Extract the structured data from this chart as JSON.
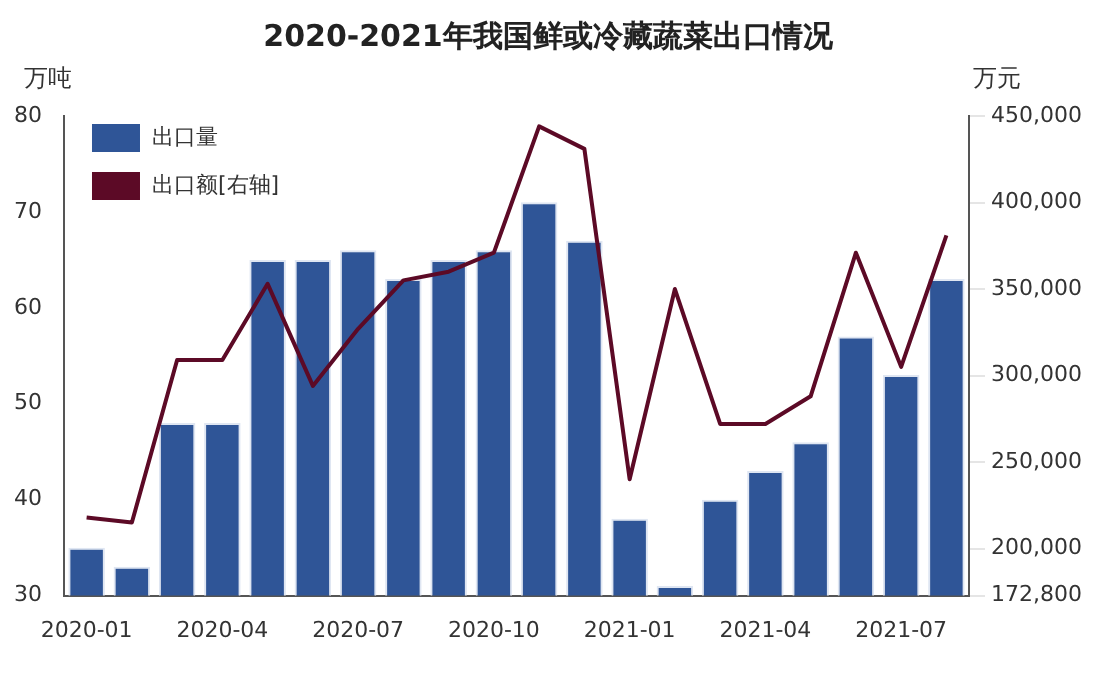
{
  "chart_data": {
    "type": "bar",
    "title": "2020-2021年我国鲜或冷藏蔬菜出口情况",
    "ylabel": "万吨",
    "y2label": "万元",
    "categories": [
      "2020-01",
      null,
      null,
      "2020-04",
      null,
      null,
      "2020-07",
      null,
      null,
      "2020-10",
      null,
      null,
      "2021-01",
      null,
      null,
      "2021-04",
      null,
      null,
      "2021-07",
      null
    ],
    "series": [
      {
        "name": "出口量",
        "color": "#2f5597",
        "values": [
          35,
          33,
          48,
          48,
          65,
          65,
          66,
          63,
          65,
          66,
          71,
          67,
          38,
          31,
          40,
          43,
          46,
          57,
          53,
          63
        ]
      },
      {
        "name": "出口额[右轴]",
        "type": "line",
        "axis": "y2",
        "color": "#5c0a26",
        "values": [
          218000,
          215000,
          309000,
          309000,
          353000,
          294000,
          327000,
          355000,
          360000,
          371000,
          444000,
          431000,
          240000,
          350000,
          272000,
          272000,
          288000,
          371000,
          305000,
          381000
        ]
      }
    ],
    "ylim": [
      30,
      80
    ],
    "yticks": [
      30,
      40,
      50,
      60,
      70,
      80
    ],
    "y2lim": [
      172800,
      450000
    ],
    "y2ticks": [
      {
        "value": 172800,
        "label": "172,800"
      },
      {
        "value": 200000,
        "label": "200,000"
      },
      {
        "value": 250000,
        "label": "250,000"
      },
      {
        "value": 300000,
        "label": "300,000"
      },
      {
        "value": 350000,
        "label": "350,000"
      },
      {
        "value": 400000,
        "label": "400,000"
      },
      {
        "value": 450000,
        "label": "450,000"
      }
    ],
    "grid": false,
    "legend": "top left",
    "marker": "none"
  }
}
